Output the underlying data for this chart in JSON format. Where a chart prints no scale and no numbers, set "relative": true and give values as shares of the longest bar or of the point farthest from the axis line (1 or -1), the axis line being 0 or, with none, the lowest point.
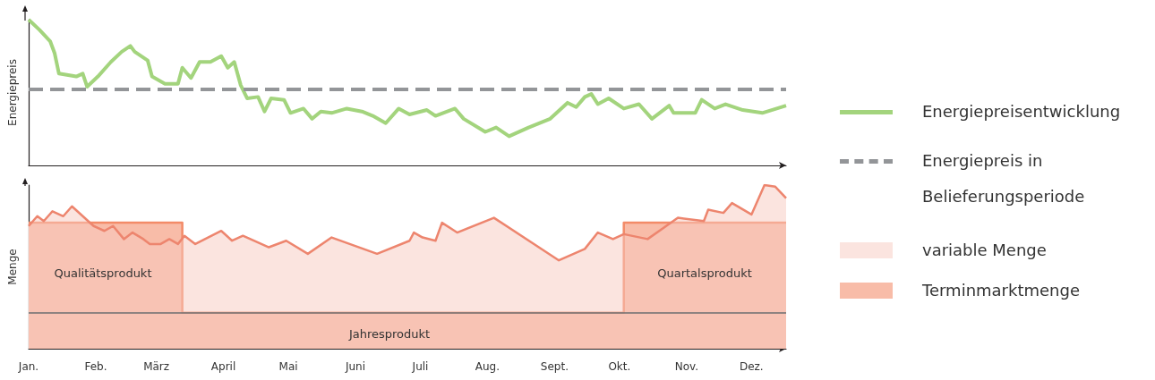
{
  "chart_data": [
    {
      "type": "line",
      "ylabel": "Energiepreis",
      "relative": true,
      "xlim": [
        "--01-01",
        "--12-17"
      ],
      "tick_labels": false,
      "grid": false,
      "legend": "right",
      "line_style": "solid",
      "series": [
        {
          "name": "Energiepreisentwicklung",
          "color": "#a3d47d",
          "x": [
            "--01-01",
            "--01-06",
            "--01-11",
            "--01-13",
            "--01-15",
            "--01-23",
            "--01-26",
            "--01-28",
            "--02-02",
            "--02-08",
            "--02-13",
            "--02-17",
            "--02-19",
            "--02-25",
            "--02-27",
            "--03-05",
            "--03-11",
            "--03-13",
            "--03-17",
            "--03-21",
            "--03-26",
            "--03-31",
            "--04-03",
            "--04-06",
            "--04-09",
            "--04-12",
            "--04-17",
            "--04-20",
            "--04-23",
            "--04-29",
            "--05-02",
            "--05-08",
            "--05-12",
            "--05-16",
            "--05-21",
            "--05-28",
            "--06-04",
            "--06-09",
            "--06-15",
            "--06-21",
            "--06-26",
            "--07-04",
            "--07-08",
            "--07-17",
            "--07-21",
            "--07-31",
            "--08-05",
            "--08-11",
            "--08-20",
            "--08-30",
            "--09-07",
            "--09-11",
            "--09-15",
            "--09-18",
            "--09-21",
            "--09-26",
            "--10-03",
            "--10-10",
            "--10-16",
            "--10-24",
            "--10-26",
            "--11-05",
            "--11-08",
            "--11-14",
            "--11-19",
            "--11-27",
            "--12-06",
            "--12-17"
          ],
          "values": [
            1.0,
            0.93,
            0.85,
            0.77,
            0.63,
            0.61,
            0.63,
            0.54,
            0.61,
            0.71,
            0.78,
            0.82,
            0.78,
            0.72,
            0.61,
            0.56,
            0.56,
            0.67,
            0.6,
            0.71,
            0.71,
            0.75,
            0.67,
            0.71,
            0.55,
            0.46,
            0.47,
            0.37,
            0.46,
            0.45,
            0.36,
            0.39,
            0.32,
            0.37,
            0.36,
            0.39,
            0.37,
            0.34,
            0.29,
            0.39,
            0.35,
            0.38,
            0.34,
            0.39,
            0.32,
            0.23,
            0.26,
            0.2,
            0.26,
            0.32,
            0.43,
            0.4,
            0.47,
            0.49,
            0.42,
            0.46,
            0.39,
            0.42,
            0.32,
            0.41,
            0.36,
            0.36,
            0.45,
            0.39,
            0.42,
            0.38,
            0.36,
            0.41
          ]
        }
      ],
      "ref_lines": [
        {
          "axis": "y",
          "value": 0.52,
          "label": "Energiepreis in Belieferungsperiode",
          "color": "#939598",
          "line_style": "dashed"
        }
      ]
    },
    {
      "type": "area",
      "ylabel": "Menge",
      "relative": true,
      "xlim": [
        "--01-01",
        "--12-17"
      ],
      "tick_labels": "x",
      "grid": false,
      "legend": "right",
      "xticks": [
        {
          "value": "--01-01",
          "label": "Jan."
        },
        {
          "value": "--02-01",
          "label": "Feb."
        },
        {
          "value": "--03-01",
          "label": "März"
        },
        {
          "value": "--04-01",
          "label": "April"
        },
        {
          "value": "--05-01",
          "label": "Mai"
        },
        {
          "value": "--06-01",
          "label": "Juni"
        },
        {
          "value": "--07-01",
          "label": "Juli"
        },
        {
          "value": "--08-01",
          "label": "Aug."
        },
        {
          "value": "--09-01",
          "label": "Sept."
        },
        {
          "value": "--10-01",
          "label": "Okt."
        },
        {
          "value": "--11-01",
          "label": "Nov."
        },
        {
          "value": "--12-01",
          "label": "Dez."
        }
      ],
      "series": [
        {
          "name": "variable Menge",
          "color": "#f7c9bf",
          "x": [
            "--01-01",
            "--01-05",
            "--01-08",
            "--01-12",
            "--01-17",
            "--01-21",
            "--01-26",
            "--01-31",
            "--02-05",
            "--02-09",
            "--02-14",
            "--02-18",
            "--02-23",
            "--02-26",
            "--03-03",
            "--03-07",
            "--03-11",
            "--03-14",
            "--03-19",
            "--03-31",
            "--04-05",
            "--04-10",
            "--04-22",
            "--04-30",
            "--05-10",
            "--05-21",
            "--06-11",
            "--06-26",
            "--06-28",
            "--07-02",
            "--07-08",
            "--07-11",
            "--07-18",
            "--08-04",
            "--09-03",
            "--09-15",
            "--09-21",
            "--09-28",
            "--10-03",
            "--10-14",
            "--10-28",
            "--11-09",
            "--11-11",
            "--11-18",
            "--11-22",
            "--12-01",
            "--12-07",
            "--12-12",
            "--12-17"
          ],
          "values": [
            0.75,
            0.81,
            0.78,
            0.84,
            0.81,
            0.87,
            0.81,
            0.75,
            0.72,
            0.75,
            0.67,
            0.71,
            0.67,
            0.64,
            0.64,
            0.67,
            0.64,
            0.69,
            0.64,
            0.72,
            0.66,
            0.69,
            0.62,
            0.66,
            0.58,
            0.68,
            0.58,
            0.66,
            0.71,
            0.68,
            0.66,
            0.77,
            0.71,
            0.8,
            0.54,
            0.61,
            0.71,
            0.67,
            0.7,
            0.67,
            0.8,
            0.78,
            0.85,
            0.83,
            0.89,
            0.82,
            1.0,
            0.99,
            0.92
          ]
        },
        {
          "name": "Terminmarktmenge",
          "color": "#f8bca8",
          "x": [
            "--01-01",
            "--03-13",
            "--03-13",
            "--10-03",
            "--10-03",
            "--12-17"
          ],
          "values": [
            0.77,
            0.77,
            0.22,
            0.22,
            0.77,
            0.77
          ]
        }
      ],
      "ref_lines": [
        {
          "axis": "y",
          "value": 0.22,
          "color": "#6d6e70",
          "line_style": "solid"
        }
      ],
      "annotations": [
        "Qualitätsprodukt",
        "Quartalsprodukt",
        "Jahresprodukt"
      ]
    }
  ]
}
